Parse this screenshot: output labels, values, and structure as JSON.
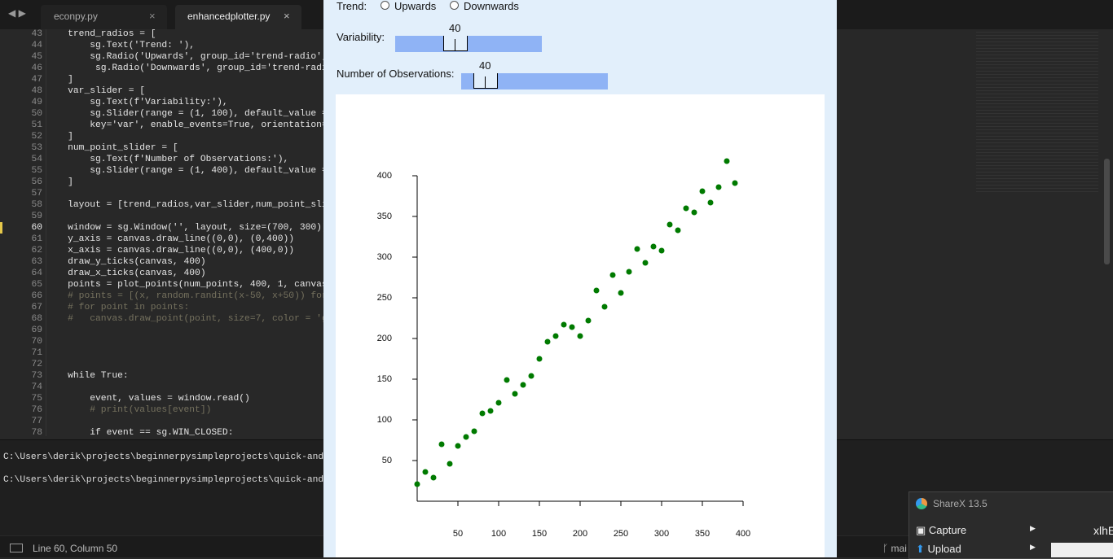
{
  "tabs": [
    {
      "label": "econpy.py"
    },
    {
      "label": "enhancedplotter.py"
    }
  ],
  "editor": {
    "lines": [
      {
        "n": "43",
        "code": "    trend_radios = ["
      },
      {
        "n": "44",
        "code": "        sg.Text('Trend: '),"
      },
      {
        "n": "45",
        "code": "        sg.Radio('Upwards', group_id='trend-radio',"
      },
      {
        "n": "46",
        "code": "         sg.Radio('Downwards', group_id='trend-radio"
      },
      {
        "n": "47",
        "code": "    ]"
      },
      {
        "n": "48",
        "code": "    var_slider = ["
      },
      {
        "n": "49",
        "code": "        sg.Text(f'Variability:'),"
      },
      {
        "n": "50",
        "code": "        sg.Slider(range = (1, 100), default_value ="
      },
      {
        "n": "51",
        "code": "        key='var', enable_events=True, orientation='"
      },
      {
        "n": "52",
        "code": "    ]"
      },
      {
        "n": "53",
        "code": "    num_point_slider = ["
      },
      {
        "n": "54",
        "code": "        sg.Text(f'Number of Observations:'),"
      },
      {
        "n": "55",
        "code": "        sg.Slider(range = (1, 400), default_value ="
      },
      {
        "n": "56",
        "code": "    ]"
      },
      {
        "n": "57"
      },
      {
        "n": "58",
        "code": "    layout = [trend_radios,var_slider,num_point_slic"
      },
      {
        "n": "59"
      },
      {
        "n": "60",
        "code": "    window = sg.Window('', layout, size=(700, 300))."
      },
      {
        "n": "61",
        "code": "    y_axis = canvas.draw_line((0,0), (0,400))"
      },
      {
        "n": "62",
        "code": "    x_axis = canvas.draw_line((0,0), (400,0))"
      },
      {
        "n": "63",
        "code": "    draw_y_ticks(canvas, 400)"
      },
      {
        "n": "64",
        "code": "    draw_x_ticks(canvas, 400)"
      },
      {
        "n": "65",
        "code": "    points = plot_points(num_points, 400, 1, canvas,"
      },
      {
        "n": "66",
        "code": "    # points = [(x, random.randint(x-50, x+50)) for"
      },
      {
        "n": "67",
        "code": "    # for point in points:"
      },
      {
        "n": "68",
        "code": "    #   canvas.draw_point(point, size=7, color = 'gr"
      },
      {
        "n": "69"
      },
      {
        "n": "70"
      },
      {
        "n": "71"
      },
      {
        "n": "72"
      },
      {
        "n": "73",
        "code": "    while True:"
      },
      {
        "n": "74"
      },
      {
        "n": "75",
        "code": "        event, values = window.read()"
      },
      {
        "n": "76",
        "code": "        # print(values[event])"
      },
      {
        "n": "77"
      },
      {
        "n": "78",
        "code": "        if event == sg.WIN_CLOSED:"
      }
    ]
  },
  "terminal": {
    "lines": [
      "C:\\Users\\derik\\projects\\beginnerpysimpleprojects\\quick-and-s",
      "C:\\Users\\derik\\projects\\beginnerpysimpleprojects\\quick-and-s"
    ]
  },
  "status": {
    "position": "Line 60, Column 50",
    "branch": "mai"
  },
  "window": {
    "trend": {
      "label": "Trend:",
      "options": [
        "Upwards",
        "Downwards"
      ]
    },
    "variability": {
      "label": "Variability:",
      "value": 40
    },
    "observations": {
      "label": "Number of Observations:",
      "value": 40
    },
    "plot": {
      "type": "scatter",
      "color": "#007a00",
      "x": [
        0,
        10,
        20,
        30,
        40,
        50,
        60,
        70,
        80,
        90,
        100,
        110,
        120,
        130,
        140,
        150,
        160,
        170,
        180,
        190,
        200,
        210,
        220,
        230,
        240,
        250,
        260,
        270,
        280,
        290,
        300,
        310,
        320,
        330,
        340,
        350,
        360,
        370,
        380,
        390
      ],
      "y": [
        21,
        36,
        29,
        70,
        46,
        68,
        79,
        86,
        108,
        111,
        121,
        149,
        132,
        143,
        154,
        175,
        196,
        203,
        217,
        214,
        203,
        222,
        259,
        239,
        278,
        256,
        282,
        310,
        293,
        313,
        308,
        340,
        333,
        360,
        355,
        381,
        367,
        386,
        418,
        391
      ],
      "xlim": [
        0,
        400
      ],
      "ylim": [
        0,
        400
      ],
      "xticks": [
        50,
        100,
        150,
        200,
        250,
        300,
        350,
        400
      ],
      "yticks": [
        50,
        100,
        150,
        200,
        250,
        300,
        350,
        400
      ]
    }
  },
  "sharex": {
    "title": "ShareX 13.5",
    "items": [
      "Capture",
      "Upload"
    ],
    "partial": "xlhE"
  }
}
